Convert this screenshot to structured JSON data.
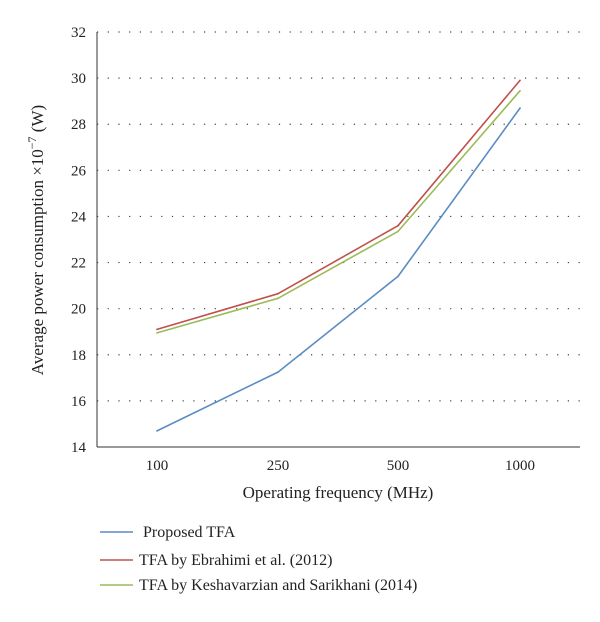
{
  "chart_data": {
    "type": "line",
    "categories": [
      "100",
      "250",
      "500",
      "1000"
    ],
    "xlabel": "Operating frequency (MHz)",
    "ylabel_main": "Average power consumption ×10",
    "ylabel_exponent": "−7",
    "ylabel_unit": " (W)",
    "ylim": [
      14,
      32
    ],
    "yticks": [
      "14",
      "16",
      "18",
      "20",
      "22",
      "24",
      "26",
      "28",
      "30",
      "32"
    ],
    "grid": "dotted-horizontal",
    "legend_position": "bottom",
    "series": [
      {
        "name": "Proposed TFA",
        "color": "#5b8cc2",
        "values": [
          14.7,
          17.25,
          21.4,
          28.7
        ]
      },
      {
        "name": "TFA by Ebrahimi et al. (2012)",
        "color": "#c0504d",
        "values": [
          19.1,
          20.65,
          23.6,
          29.9
        ]
      },
      {
        "name": "TFA by Keshavarzian and Sarikhani (2014)",
        "color": "#9bbb59",
        "values": [
          18.95,
          20.45,
          23.35,
          29.45
        ]
      }
    ]
  }
}
